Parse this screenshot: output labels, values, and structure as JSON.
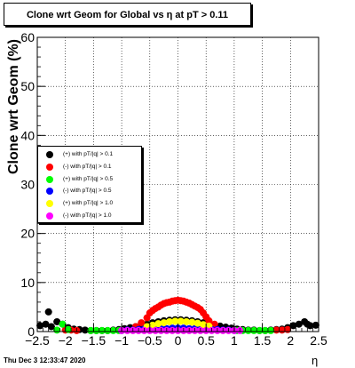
{
  "chart_data": {
    "type": "scatter",
    "title": "Clone wrt Geom for Global vs   η at pT > 0.11",
    "xlabel": "η",
    "ylabel": "Clone wrt Geom (%)",
    "xlim": [
      -2.5,
      2.5
    ],
    "ylim": [
      0,
      60
    ],
    "x_ticks": [
      -2.5,
      -2,
      -1.5,
      -1,
      -0.5,
      0,
      0.5,
      1,
      1.5,
      2,
      2.5
    ],
    "x_tick_labels": [
      "−2.5",
      "−2",
      "−1.5",
      "−1",
      "−0.5",
      "0",
      "0.5",
      "1",
      "1.5",
      "2",
      "2.5"
    ],
    "y_ticks": [
      0,
      10,
      20,
      30,
      40,
      50,
      60
    ],
    "grid": true,
    "legend_position": "center-left",
    "series": [
      {
        "name": "(+) with pT/|q| > 0.1",
        "color": "#000000",
        "points": [
          [
            -2.45,
            1.2
          ],
          [
            -2.35,
            1.5
          ],
          [
            -2.3,
            4.0
          ],
          [
            -2.25,
            1.0
          ],
          [
            -2.15,
            2.0
          ],
          [
            -2.05,
            1.5
          ],
          [
            -1.95,
            0.8
          ],
          [
            -1.85,
            0.5
          ],
          [
            -1.75,
            0.4
          ],
          [
            -1.65,
            0.3
          ],
          [
            -1.55,
            0.2
          ],
          [
            -1.45,
            0.2
          ],
          [
            -1.35,
            0.2
          ],
          [
            -1.25,
            0.2
          ],
          [
            -1.15,
            0.3
          ],
          [
            -1.05,
            0.4
          ],
          [
            -0.95,
            0.6
          ],
          [
            -0.85,
            0.8
          ],
          [
            -0.75,
            1.0
          ],
          [
            -0.65,
            1.2
          ],
          [
            -0.55,
            1.5
          ],
          [
            -0.45,
            1.8
          ],
          [
            -0.35,
            2.0
          ],
          [
            -0.25,
            2.2
          ],
          [
            -0.15,
            2.3
          ],
          [
            -0.05,
            2.4
          ],
          [
            0.05,
            2.4
          ],
          [
            0.15,
            2.3
          ],
          [
            0.25,
            2.2
          ],
          [
            0.35,
            2.0
          ],
          [
            0.45,
            1.8
          ],
          [
            0.55,
            1.5
          ],
          [
            0.65,
            1.3
          ],
          [
            0.75,
            1.1
          ],
          [
            0.85,
            0.9
          ],
          [
            0.95,
            0.7
          ],
          [
            1.05,
            0.5
          ],
          [
            1.15,
            0.4
          ],
          [
            1.25,
            0.3
          ],
          [
            1.35,
            0.3
          ],
          [
            1.45,
            0.2
          ],
          [
            1.55,
            0.2
          ],
          [
            1.65,
            0.3
          ],
          [
            1.75,
            0.4
          ],
          [
            1.85,
            0.5
          ],
          [
            1.95,
            0.8
          ],
          [
            2.05,
            1.2
          ],
          [
            2.15,
            1.5
          ],
          [
            2.25,
            2.0
          ],
          [
            2.3,
            1.5
          ],
          [
            2.35,
            1.2
          ],
          [
            2.45,
            1.3
          ]
        ]
      },
      {
        "name": "(-) with pT/|q| > 0.1",
        "color": "#ff0000",
        "points": [
          [
            -2.0,
            0.3
          ],
          [
            -1.9,
            0.3
          ],
          [
            -1.8,
            0.2
          ],
          [
            -0.75,
            1.0
          ],
          [
            -0.65,
            1.8
          ],
          [
            -0.55,
            2.8
          ],
          [
            -0.5,
            3.8
          ],
          [
            -0.45,
            4.3
          ],
          [
            -0.4,
            4.7
          ],
          [
            -0.35,
            5.0
          ],
          [
            -0.3,
            5.4
          ],
          [
            -0.25,
            5.7
          ],
          [
            -0.2,
            5.9
          ],
          [
            -0.15,
            6.0
          ],
          [
            -0.1,
            6.2
          ],
          [
            -0.05,
            6.3
          ],
          [
            0.0,
            6.4
          ],
          [
            0.05,
            6.3
          ],
          [
            0.1,
            6.2
          ],
          [
            0.15,
            6.0
          ],
          [
            0.2,
            5.8
          ],
          [
            0.25,
            5.5
          ],
          [
            0.3,
            5.2
          ],
          [
            0.35,
            4.9
          ],
          [
            0.4,
            4.5
          ],
          [
            0.45,
            3.8
          ],
          [
            0.5,
            3.0
          ],
          [
            0.55,
            2.2
          ],
          [
            0.65,
            1.5
          ],
          [
            1.75,
            0.3
          ],
          [
            1.85,
            0.3
          ],
          [
            1.95,
            0.4
          ]
        ]
      },
      {
        "name": "(+) with pT/|q| > 0.5",
        "color": "#00ff00",
        "points": [
          [
            -2.15,
            0.3
          ],
          [
            -2.05,
            1.5
          ],
          [
            -1.95,
            0.4
          ],
          [
            -1.55,
            0.2
          ],
          [
            -1.45,
            0.2
          ],
          [
            -1.35,
            0.2
          ],
          [
            -1.25,
            0.2
          ],
          [
            -1.15,
            0.2
          ],
          [
            -1.05,
            0.2
          ],
          [
            1.05,
            0.2
          ],
          [
            1.15,
            0.2
          ],
          [
            1.25,
            0.2
          ],
          [
            1.35,
            0.2
          ],
          [
            1.45,
            0.2
          ],
          [
            1.55,
            0.2
          ],
          [
            1.65,
            0.2
          ]
        ]
      },
      {
        "name": "(-) with pT/|q| > 0.5",
        "color": "#0000ff",
        "points": [
          [
            -1.0,
            0.2
          ],
          [
            -0.9,
            0.3
          ],
          [
            -0.8,
            0.3
          ],
          [
            -0.7,
            0.4
          ],
          [
            -0.6,
            0.5
          ],
          [
            -0.5,
            0.5
          ],
          [
            -0.4,
            0.6
          ],
          [
            -0.3,
            0.6
          ],
          [
            -0.2,
            0.6
          ],
          [
            -0.1,
            0.7
          ],
          [
            0.0,
            0.7
          ],
          [
            0.1,
            0.7
          ],
          [
            0.2,
            0.6
          ],
          [
            0.3,
            0.6
          ],
          [
            0.4,
            0.5
          ],
          [
            0.5,
            0.5
          ],
          [
            0.6,
            0.4
          ],
          [
            0.7,
            0.4
          ],
          [
            0.8,
            0.3
          ],
          [
            0.9,
            0.3
          ],
          [
            1.0,
            0.2
          ]
        ]
      },
      {
        "name": "(+) with pT/|q| > 1.0",
        "color": "#ffff00",
        "points": [
          [
            -0.55,
            1.0
          ],
          [
            -0.45,
            1.3
          ],
          [
            -0.35,
            1.6
          ],
          [
            -0.25,
            1.8
          ],
          [
            -0.15,
            2.0
          ],
          [
            -0.05,
            2.1
          ],
          [
            0.05,
            2.1
          ],
          [
            0.15,
            2.0
          ],
          [
            0.25,
            1.9
          ],
          [
            0.35,
            1.7
          ],
          [
            0.45,
            1.4
          ],
          [
            0.55,
            1.1
          ]
        ]
      },
      {
        "name": "(-) with pT/|q| > 1.0",
        "color": "#ff00ff",
        "points": [
          [
            -1.0,
            0.2
          ],
          [
            -0.9,
            0.2
          ],
          [
            -0.8,
            0.2
          ],
          [
            -0.7,
            0.2
          ],
          [
            -0.6,
            0.2
          ],
          [
            -0.5,
            0.2
          ],
          [
            -0.4,
            0.2
          ],
          [
            -0.3,
            0.2
          ],
          [
            -0.2,
            0.2
          ],
          [
            -0.1,
            0.2
          ],
          [
            0.0,
            0.2
          ],
          [
            0.1,
            0.2
          ],
          [
            0.2,
            0.2
          ],
          [
            0.3,
            0.2
          ],
          [
            0.4,
            0.2
          ],
          [
            0.5,
            0.2
          ],
          [
            0.6,
            0.2
          ],
          [
            0.7,
            0.2
          ],
          [
            0.8,
            0.2
          ],
          [
            0.9,
            0.2
          ],
          [
            1.0,
            0.2
          ],
          [
            1.1,
            0.2
          ]
        ]
      }
    ]
  },
  "footer": {
    "timestamp": "Thu Dec  3 12:33:47 2020"
  }
}
